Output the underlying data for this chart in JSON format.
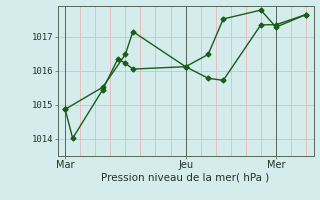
{
  "title": "",
  "xlabel": "Pression niveau de la mer( hPa )",
  "bg_color": "#d4ecec",
  "line_color": "#1a5c1a",
  "grid_color": "#e8b8b8",
  "x_tick_positions": [
    0,
    8,
    14
  ],
  "x_tick_labels": [
    "Mar",
    "Jeu",
    "Mer"
  ],
  "ylim": [
    1013.5,
    1017.9
  ],
  "y_ticks": [
    1014,
    1015,
    1016,
    1017
  ],
  "xlim": [
    -0.5,
    16.5
  ],
  "vline_x": 8,
  "vline2_x": 14,
  "line1_x": [
    0,
    0.5,
    2.5,
    3.5,
    4.0,
    4.5,
    8.0,
    9.5,
    10.5,
    13.0,
    14.0,
    16.0
  ],
  "line1_y": [
    1014.87,
    1014.02,
    1015.45,
    1016.35,
    1016.22,
    1016.05,
    1016.12,
    1015.78,
    1015.72,
    1017.35,
    1017.35,
    1017.65
  ],
  "line2_x": [
    0,
    2.5,
    4.0,
    4.5,
    8.0,
    9.5,
    10.5,
    13.0,
    14.0,
    16.0
  ],
  "line2_y": [
    1014.87,
    1015.52,
    1016.48,
    1017.15,
    1016.12,
    1016.48,
    1017.52,
    1017.78,
    1017.28,
    1017.65
  ],
  "figsize": [
    3.2,
    2.0
  ],
  "dpi": 100
}
